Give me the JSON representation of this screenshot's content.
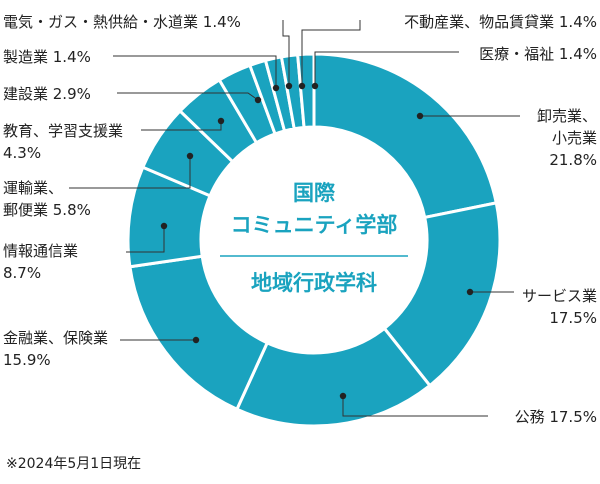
{
  "chart_data": {
    "type": "pie",
    "variant": "donut",
    "center_title": [
      "国際",
      "コミュニティ学部"
    ],
    "center_subtitle": "地域行政学科",
    "slices": [
      {
        "lines": [
          "卸売業、",
          "小売業",
          "21.8%"
        ],
        "value": 21.8
      },
      {
        "lines": [
          "サービス業",
          "17.5%"
        ],
        "value": 17.5
      },
      {
        "lines": [
          "公務 17.5%"
        ],
        "value": 17.5
      },
      {
        "lines": [
          "金融業、保険業",
          "15.9%"
        ],
        "value": 15.9
      },
      {
        "lines": [
          "情報通信業",
          "8.7%"
        ],
        "value": 8.7
      },
      {
        "lines": [
          "運輸業、",
          "郵便業 5.8%"
        ],
        "value": 5.8
      },
      {
        "lines": [
          "教育、学習支援業",
          "4.3%"
        ],
        "value": 4.3
      },
      {
        "lines": [
          "建設業 2.9%"
        ],
        "value": 2.9
      },
      {
        "lines": [
          "製造業 1.4%"
        ],
        "value": 1.4
      },
      {
        "lines": [
          "電気・ガス・熱供給・水道業 1.4%"
        ],
        "value": 1.4
      },
      {
        "lines": [
          "不動産業、物品賃貸業 1.4%"
        ],
        "value": 1.4
      },
      {
        "lines": [
          "医療・福祉 1.4%"
        ],
        "value": 1.4
      }
    ],
    "colors": {
      "slice": "#1aa3bf",
      "separator": "#ffffff",
      "leader": "#333333",
      "center_text": "#1aa3bf"
    }
  },
  "footnote": "※2024年5月1日現在"
}
